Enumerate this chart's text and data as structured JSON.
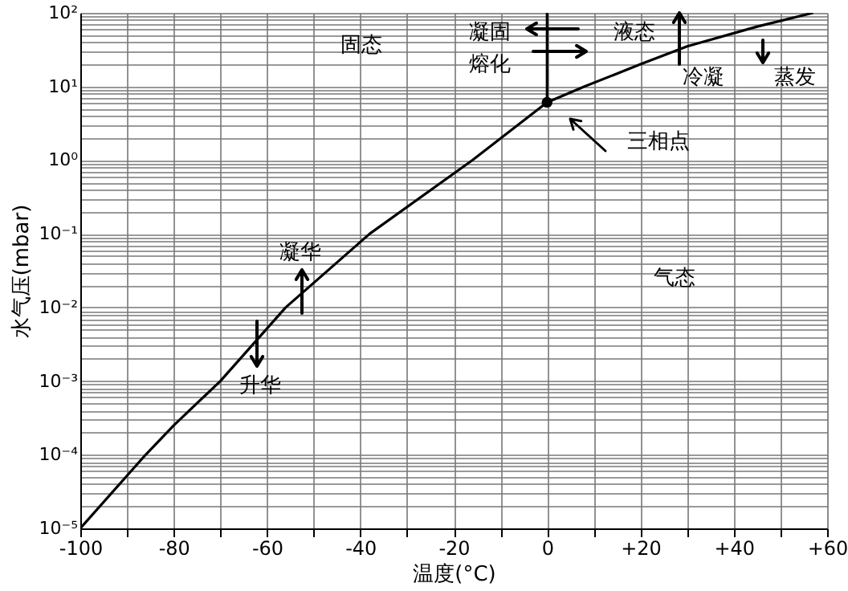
{
  "chart_data": {
    "type": "line",
    "xlabel": "温度(°C)",
    "ylabel": "水气压(mbar)",
    "log": "y",
    "grid": true,
    "xlim": [
      -100,
      60
    ],
    "ylim": [
      1e-05,
      100
    ],
    "xticks": [
      -100,
      {
        "value": -90,
        "label": null
      },
      -80,
      {
        "value": -70,
        "label": null
      },
      -60,
      {
        "value": -50,
        "label": null
      },
      -40,
      {
        "value": -30,
        "label": null
      },
      -20,
      {
        "value": -10,
        "label": null
      },
      0,
      {
        "value": 10,
        "label": null
      },
      {
        "value": 20,
        "label": "+20"
      },
      {
        "value": 30,
        "label": null
      },
      {
        "value": 40,
        "label": "+40"
      },
      {
        "value": 50,
        "label": null
      },
      {
        "value": 60,
        "label": "+60"
      }
    ],
    "yticks": [
      {
        "value": 1e-05,
        "label": "10⁻⁵"
      },
      {
        "value": 0.0001,
        "label": "10⁻⁴"
      },
      {
        "value": 0.001,
        "label": "10⁻³"
      },
      {
        "value": 0.01,
        "label": "10⁻²"
      },
      {
        "value": 0.1,
        "label": "10⁻¹"
      },
      {
        "value": 1,
        "label": "10⁰"
      },
      {
        "value": 10,
        "label": "10¹"
      },
      {
        "value": 100,
        "label": "10²"
      }
    ],
    "series": [
      {
        "color": "#000000",
        "x": [
          -100,
          -86,
          -80,
          -70,
          -56,
          -38,
          -16,
          0,
          8,
          20,
          30,
          45,
          57
        ],
        "values": [
          1e-05,
          0.0001,
          0.00025,
          0.001,
          0.01,
          0.1,
          1,
          6.1,
          10,
          20,
          35,
          65,
          100
        ]
      },
      {
        "color": "#000000",
        "x": [
          0,
          0
        ],
        "values": [
          6.1,
          100
        ]
      },
      {
        "type": "scatter",
        "color": "#000000",
        "marker": "circle",
        "x": [
          0
        ],
        "values": [
          6.1
        ]
      }
    ],
    "annotations": [
      "固态",
      "凝固",
      "熔化",
      "液态",
      "冷凝",
      "蒸发",
      "三相点",
      "凝华",
      "升华",
      "气态"
    ]
  }
}
